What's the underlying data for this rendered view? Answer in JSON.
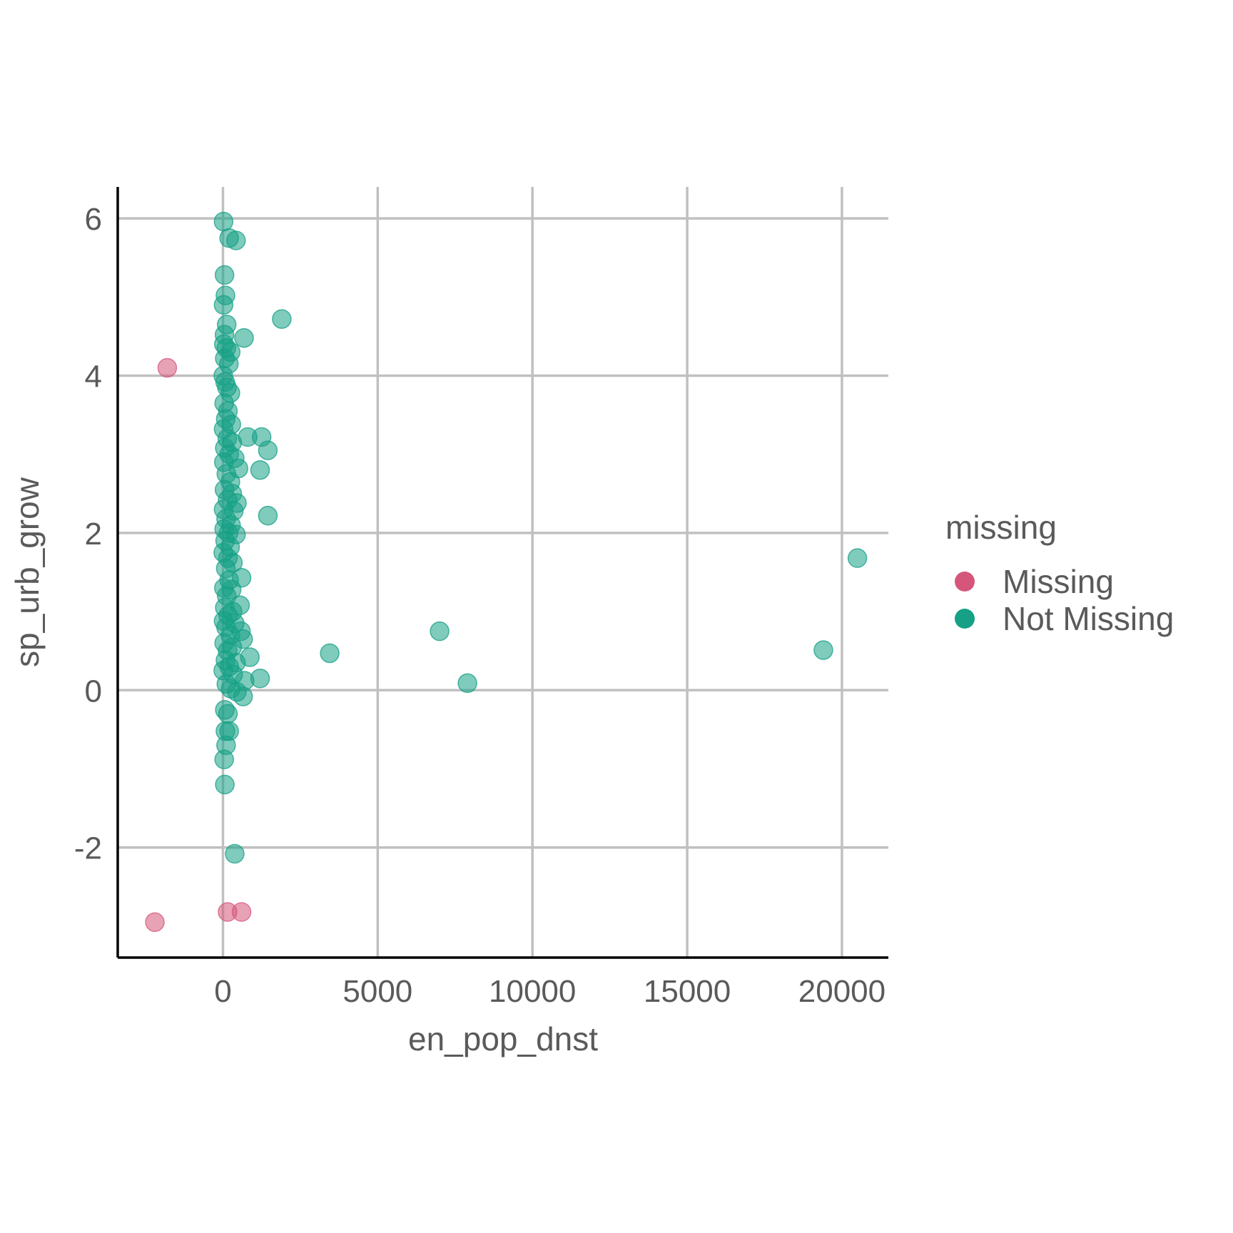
{
  "chart_data": {
    "type": "scatter",
    "title": "",
    "xlabel": "en_pop_dnst",
    "ylabel": "sp_urb_grow",
    "xlim": [
      -3400,
      21500
    ],
    "ylim": [
      -3.4,
      6.4
    ],
    "x_ticks": [
      0,
      5000,
      10000,
      15000,
      20000
    ],
    "x_tick_labels": [
      "0",
      "5000",
      "10000",
      "15000",
      "20000"
    ],
    "y_ticks": [
      -2,
      0,
      2,
      4,
      6
    ],
    "y_tick_labels": [
      "-2",
      "0",
      "2",
      "4",
      "6"
    ],
    "grid": true,
    "legend": {
      "title": "missing",
      "placement": "right",
      "entries": [
        {
          "label": "Missing",
          "color": "#d6557a"
        },
        {
          "label": "Not Missing",
          "color": "#16a085"
        }
      ]
    },
    "series": [
      {
        "name": "Missing",
        "color": "#d6557a",
        "points": [
          {
            "x": -1800,
            "y": 4.1
          },
          {
            "x": -2200,
            "y": -2.95
          },
          {
            "x": 150,
            "y": -2.82
          },
          {
            "x": 600,
            "y": -2.82
          }
        ]
      },
      {
        "name": "Not Missing",
        "color": "#16a085",
        "points": [
          {
            "x": 20,
            "y": 5.96
          },
          {
            "x": 200,
            "y": 5.75
          },
          {
            "x": 420,
            "y": 5.72
          },
          {
            "x": 50,
            "y": 5.28
          },
          {
            "x": 80,
            "y": 5.02
          },
          {
            "x": 20,
            "y": 4.9
          },
          {
            "x": 1900,
            "y": 4.72
          },
          {
            "x": 120,
            "y": 4.65
          },
          {
            "x": 50,
            "y": 4.52
          },
          {
            "x": 680,
            "y": 4.48
          },
          {
            "x": 30,
            "y": 4.4
          },
          {
            "x": 110,
            "y": 4.35
          },
          {
            "x": 250,
            "y": 4.3
          },
          {
            "x": 60,
            "y": 4.22
          },
          {
            "x": 190,
            "y": 4.15
          },
          {
            "x": 10,
            "y": 4.0
          },
          {
            "x": 70,
            "y": 3.92
          },
          {
            "x": 130,
            "y": 3.85
          },
          {
            "x": 240,
            "y": 3.78
          },
          {
            "x": 40,
            "y": 3.65
          },
          {
            "x": 160,
            "y": 3.55
          },
          {
            "x": 90,
            "y": 3.45
          },
          {
            "x": 270,
            "y": 3.38
          },
          {
            "x": 20,
            "y": 3.32
          },
          {
            "x": 800,
            "y": 3.22
          },
          {
            "x": 1250,
            "y": 3.22
          },
          {
            "x": 140,
            "y": 3.2
          },
          {
            "x": 300,
            "y": 3.15
          },
          {
            "x": 60,
            "y": 3.08
          },
          {
            "x": 1450,
            "y": 3.05
          },
          {
            "x": 200,
            "y": 3.0
          },
          {
            "x": 380,
            "y": 2.95
          },
          {
            "x": 30,
            "y": 2.9
          },
          {
            "x": 500,
            "y": 2.82
          },
          {
            "x": 1200,
            "y": 2.8
          },
          {
            "x": 110,
            "y": 2.75
          },
          {
            "x": 240,
            "y": 2.65
          },
          {
            "x": 50,
            "y": 2.55
          },
          {
            "x": 300,
            "y": 2.5
          },
          {
            "x": 150,
            "y": 2.42
          },
          {
            "x": 450,
            "y": 2.38
          },
          {
            "x": 20,
            "y": 2.3
          },
          {
            "x": 350,
            "y": 2.28
          },
          {
            "x": 1450,
            "y": 2.22
          },
          {
            "x": 100,
            "y": 2.18
          },
          {
            "x": 260,
            "y": 2.1
          },
          {
            "x": 40,
            "y": 2.05
          },
          {
            "x": 180,
            "y": 2.0
          },
          {
            "x": 420,
            "y": 1.98
          },
          {
            "x": 70,
            "y": 1.9
          },
          {
            "x": 230,
            "y": 1.82
          },
          {
            "x": 10,
            "y": 1.75
          },
          {
            "x": 160,
            "y": 1.68
          },
          {
            "x": 320,
            "y": 1.62
          },
          {
            "x": 90,
            "y": 1.55
          },
          {
            "x": 600,
            "y": 1.43
          },
          {
            "x": 200,
            "y": 1.4
          },
          {
            "x": 30,
            "y": 1.3
          },
          {
            "x": 280,
            "y": 1.28
          },
          {
            "x": 120,
            "y": 1.2
          },
          {
            "x": 550,
            "y": 1.08
          },
          {
            "x": 60,
            "y": 1.05
          },
          {
            "x": 310,
            "y": 1.0
          },
          {
            "x": 170,
            "y": 0.95
          },
          {
            "x": 20,
            "y": 0.88
          },
          {
            "x": 380,
            "y": 0.85
          },
          {
            "x": 100,
            "y": 0.8
          },
          {
            "x": 580,
            "y": 0.75
          },
          {
            "x": 240,
            "y": 0.7
          },
          {
            "x": 650,
            "y": 0.65
          },
          {
            "x": 40,
            "y": 0.6
          },
          {
            "x": 300,
            "y": 0.55
          },
          {
            "x": 150,
            "y": 0.5
          },
          {
            "x": 870,
            "y": 0.42
          },
          {
            "x": 80,
            "y": 0.38
          },
          {
            "x": 420,
            "y": 0.35
          },
          {
            "x": 200,
            "y": 0.3
          },
          {
            "x": 10,
            "y": 0.25
          },
          {
            "x": 330,
            "y": 0.2
          },
          {
            "x": 1200,
            "y": 0.15
          },
          {
            "x": 700,
            "y": 0.12
          },
          {
            "x": 110,
            "y": 0.08
          },
          {
            "x": 250,
            "y": 0.02
          },
          {
            "x": 450,
            "y": -0.02
          },
          {
            "x": 650,
            "y": -0.08
          },
          {
            "x": 60,
            "y": -0.25
          },
          {
            "x": 160,
            "y": -0.3
          },
          {
            "x": 80,
            "y": -0.52
          },
          {
            "x": 200,
            "y": -0.52
          },
          {
            "x": 100,
            "y": -0.7
          },
          {
            "x": 40,
            "y": -0.88
          },
          {
            "x": 60,
            "y": -1.2
          },
          {
            "x": 380,
            "y": -2.08
          },
          {
            "x": 3450,
            "y": 0.47
          },
          {
            "x": 7000,
            "y": 0.75
          },
          {
            "x": 7900,
            "y": 0.09
          },
          {
            "x": 19400,
            "y": 0.51
          },
          {
            "x": 20500,
            "y": 1.68
          }
        ]
      }
    ]
  }
}
